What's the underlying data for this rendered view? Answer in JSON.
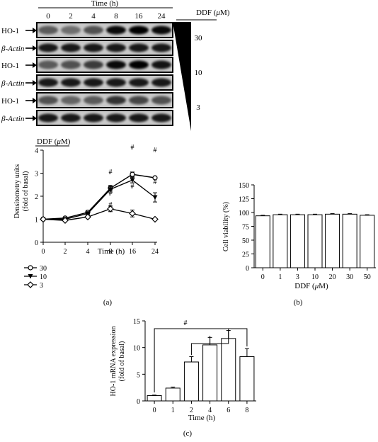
{
  "blot": {
    "time_header": "Time (h)",
    "time_labels": [
      "0",
      "2",
      "4",
      "8",
      "16",
      "24"
    ],
    "ddf_header": "DDF (",
    "ddf_mu": "μ",
    "ddf_unit": "M)",
    "concentrations": [
      "30",
      "10",
      "3"
    ],
    "row_labels": [
      "HO-1",
      "β-Actin",
      "HO-1",
      "β-Actin",
      "HO-1",
      "β-Actin"
    ],
    "ho1_intensity": [
      [
        0.55,
        0.45,
        0.6,
        0.95,
        1.0,
        0.95
      ],
      [
        0.55,
        0.6,
        0.7,
        0.95,
        1.0,
        0.9
      ],
      [
        0.6,
        0.5,
        0.55,
        0.75,
        0.65,
        0.6
      ]
    ]
  },
  "legend_a": {
    "header_prefix": "DDF (",
    "header_mu": "μ",
    "header_suffix": "M)",
    "entries": [
      "30",
      "10",
      "3"
    ]
  },
  "panel_labels": {
    "a": "(a)",
    "b": "(b)",
    "c": "(c)"
  },
  "annotations": {
    "hash": "#"
  },
  "chart_data": [
    {
      "type": "line",
      "x": [
        0,
        2,
        4,
        8,
        16,
        24
      ],
      "tick_labels_x": [
        "0",
        "2",
        "4",
        "8",
        "16",
        "24"
      ],
      "tick_labels_y": [
        "0",
        "1",
        "2",
        "3",
        "4"
      ],
      "xlabel": "Time (h)",
      "ylabel_line1": "Densitometry units",
      "ylabel_line2": "(fold of basal)",
      "ylim": [
        0,
        4
      ],
      "series": [
        {
          "name": "30",
          "marker": "circle",
          "values": [
            1.0,
            1.05,
            1.3,
            2.35,
            2.95,
            2.8
          ],
          "err": [
            0.05,
            0.05,
            0.08,
            0.12,
            0.1,
            0.05
          ]
        },
        {
          "name": "10",
          "marker": "triangle",
          "values": [
            1.0,
            1.0,
            1.25,
            2.3,
            2.7,
            1.95
          ],
          "err": [
            0.05,
            0.05,
            0.08,
            0.12,
            0.12,
            0.2
          ]
        },
        {
          "name": "3",
          "marker": "diamond",
          "values": [
            1.0,
            0.95,
            1.1,
            1.45,
            1.25,
            1.0
          ],
          "err": [
            0.05,
            0.05,
            0.05,
            0.12,
            0.15,
            0.04
          ]
        }
      ]
    },
    {
      "type": "bar",
      "categories": [
        "0",
        "1",
        "3",
        "10",
        "20",
        "30",
        "50"
      ],
      "values": [
        94,
        96,
        96,
        96,
        97,
        97,
        95
      ],
      "err": [
        1,
        1,
        1,
        1,
        1,
        1,
        1
      ],
      "tick_labels_y": [
        "0",
        "25",
        "50",
        "75",
        "100",
        "125",
        "150"
      ],
      "xlabel_prefix": "DDF (",
      "xlabel_mu": "μ",
      "xlabel_suffix": "M)",
      "ylabel": "Cell viability (%)",
      "ylim": [
        0,
        150
      ]
    },
    {
      "type": "bar",
      "categories": [
        "0",
        "1",
        "2",
        "4",
        "6",
        "8"
      ],
      "values": [
        1.0,
        2.4,
        7.3,
        10.5,
        11.7,
        8.3
      ],
      "err": [
        0.1,
        0.2,
        1.0,
        1.4,
        1.5,
        1.5
      ],
      "tick_labels_y": [
        "0",
        "5",
        "10",
        "15"
      ],
      "xlabel": "Time (h)",
      "ylabel_line1": "HO-1 mRNA expression",
      "ylabel_line2": "(fold of basal)",
      "ylim": [
        0,
        15
      ]
    }
  ]
}
